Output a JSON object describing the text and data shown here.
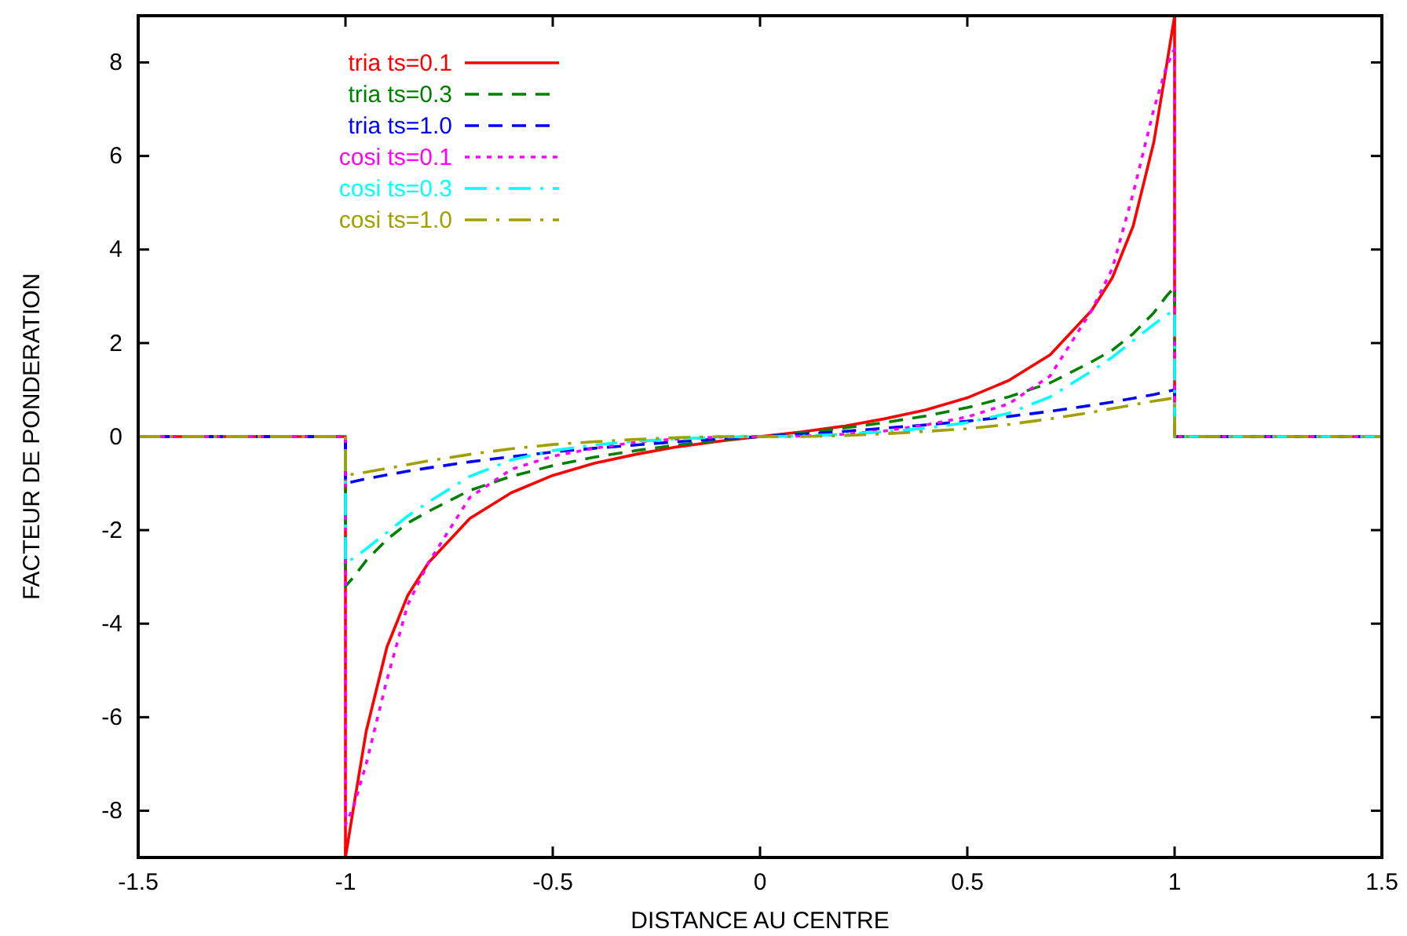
{
  "chart_data": {
    "type": "line",
    "xlabel": "DISTANCE AU CENTRE",
    "ylabel": "FACTEUR DE PONDERATION",
    "x": [
      -1.5,
      -1,
      -1,
      -0.98,
      -0.95,
      -0.9,
      -0.85,
      -0.8,
      -0.7,
      -0.6,
      -0.5,
      -0.4,
      -0.3,
      -0.2,
      -0.1,
      0,
      0.1,
      0.2,
      0.3,
      0.4,
      0.5,
      0.6,
      0.7,
      0.8,
      0.85,
      0.9,
      0.95,
      0.98,
      1,
      1,
      1.5
    ],
    "xlim": [
      -1.5,
      1.5
    ],
    "xticks": [
      -1.5,
      -1,
      -0.5,
      0,
      0.5,
      1,
      1.5
    ],
    "ylim": [
      -9,
      9
    ],
    "yticks": [
      -8,
      -6,
      -4,
      -2,
      0,
      2,
      4,
      6,
      8
    ],
    "grid": false,
    "legend": "top left",
    "marker": "none",
    "series": [
      {
        "name": "tria ts=0.1",
        "color": "#ff0000",
        "line_style": "solid",
        "values": [
          0,
          0,
          -9,
          -7.9,
          -6.3,
          -4.5,
          -3.4,
          -2.7,
          -1.75,
          -1.2,
          -0.83,
          -0.57,
          -0.38,
          -0.22,
          -0.1,
          0,
          0.1,
          0.22,
          0.38,
          0.57,
          0.83,
          1.2,
          1.75,
          2.7,
          3.4,
          4.5,
          6.3,
          7.9,
          9,
          0,
          0
        ]
      },
      {
        "name": "tria ts=0.3",
        "color": "#008000",
        "line_style": "dashed",
        "values": [
          0,
          0,
          -3.2,
          -3,
          -2.65,
          -2.2,
          -1.85,
          -1.6,
          -1.15,
          -0.85,
          -0.62,
          -0.44,
          -0.3,
          -0.18,
          -0.08,
          0,
          0.08,
          0.18,
          0.3,
          0.44,
          0.62,
          0.85,
          1.15,
          1.6,
          1.85,
          2.2,
          2.65,
          3,
          3.2,
          0,
          0
        ]
      },
      {
        "name": "tria ts=1.0",
        "color": "#0000ff",
        "line_style": "dashed",
        "values": [
          0,
          0,
          -1,
          -0.96,
          -0.9,
          -0.82,
          -0.74,
          -0.67,
          -0.54,
          -0.43,
          -0.33,
          -0.25,
          -0.18,
          -0.11,
          -0.05,
          0,
          0.05,
          0.11,
          0.18,
          0.25,
          0.33,
          0.43,
          0.54,
          0.67,
          0.74,
          0.82,
          0.9,
          0.96,
          1,
          0,
          0
        ]
      },
      {
        "name": "cosi ts=0.1",
        "color": "#ff00ff",
        "line_style": "dotted",
        "values": [
          0,
          0,
          -8.3,
          -7.9,
          -7,
          -5.2,
          -3.6,
          -2.7,
          -1.3,
          -0.7,
          -0.42,
          -0.25,
          -0.12,
          -0.05,
          -0.01,
          0,
          0.01,
          0.05,
          0.12,
          0.25,
          0.42,
          0.7,
          1.3,
          2.7,
          3.6,
          5.2,
          7,
          7.9,
          8.3,
          0,
          0
        ]
      },
      {
        "name": "cosi ts=0.3",
        "color": "#00ffff",
        "line_style": "dashdot",
        "values": [
          0,
          0,
          -2.7,
          -2.6,
          -2.4,
          -2.05,
          -1.7,
          -1.4,
          -0.85,
          -0.5,
          -0.3,
          -0.18,
          -0.1,
          -0.05,
          -0.01,
          0,
          0.01,
          0.05,
          0.1,
          0.18,
          0.3,
          0.5,
          0.85,
          1.4,
          1.7,
          2.05,
          2.4,
          2.6,
          2.7,
          0,
          0
        ]
      },
      {
        "name": "cosi ts=1.0",
        "color": "#a0a000",
        "line_style": "dashdot",
        "values": [
          0,
          0,
          -0.83,
          -0.8,
          -0.76,
          -0.68,
          -0.6,
          -0.52,
          -0.38,
          -0.26,
          -0.17,
          -0.11,
          -0.06,
          -0.02,
          0,
          0,
          0,
          0.02,
          0.06,
          0.11,
          0.17,
          0.26,
          0.38,
          0.52,
          0.6,
          0.68,
          0.76,
          0.8,
          0.83,
          0,
          0
        ]
      }
    ]
  }
}
